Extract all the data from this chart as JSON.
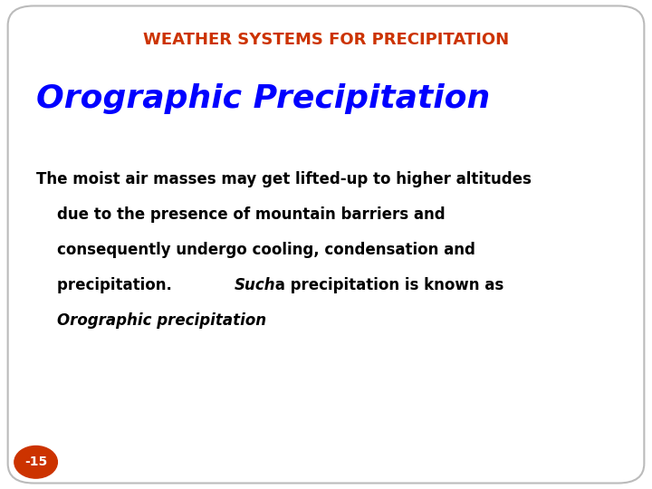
{
  "title": "WEATHER SYSTEMS FOR PRECIPITATION",
  "title_color": "#cc3300",
  "subtitle": "Orographic Precipitation",
  "subtitle_color": "#0000ff",
  "body_color": "#000000",
  "background_color": "#ffffff",
  "border_color": "#bbbbbb",
  "badge_text": "-15",
  "badge_bg": "#cc3300",
  "badge_text_color": "#ffffff",
  "title_fontsize": 13,
  "subtitle_fontsize": 26,
  "body_fontsize": 12,
  "fig_width": 7.2,
  "fig_height": 5.4,
  "dpi": 100
}
